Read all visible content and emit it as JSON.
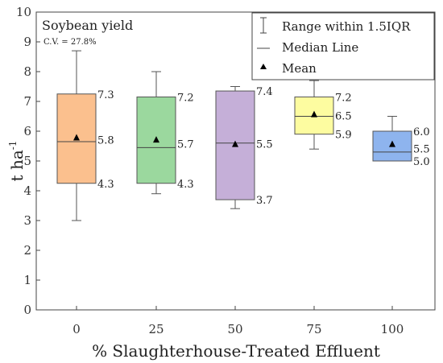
{
  "chart_data": {
    "type": "box",
    "title": "Soybean yield",
    "subtitle": "C.V. = 27.8%",
    "xlabel": "% Slaughterhouse-Treated Effluent",
    "ylabel_main": "t ha",
    "ylabel_sup": "-1",
    "ylim": [
      0,
      10
    ],
    "yticks": [
      "0",
      "1",
      "2",
      "3",
      "4",
      "5",
      "6",
      "7",
      "8",
      "9",
      "10"
    ],
    "categories": [
      "0",
      "25",
      "50",
      "75",
      "100"
    ],
    "boxes": [
      {
        "category": "0",
        "whisker_low": 3.0,
        "q1": 4.25,
        "median": 5.65,
        "q3": 7.25,
        "whisker_high": 8.7,
        "mean": 5.77,
        "color": "#FBC08E",
        "q1_label": "4.3",
        "median_label": "5.8",
        "q3_label": "7.3"
      },
      {
        "category": "25",
        "whisker_low": 3.9,
        "q1": 4.25,
        "median": 5.45,
        "q3": 7.15,
        "whisker_high": 8.0,
        "mean": 5.7,
        "color": "#9BD89E",
        "q1_label": "4.3",
        "median_label": "5.7",
        "q3_label": "7.2"
      },
      {
        "category": "50",
        "whisker_low": 3.4,
        "q1": 3.7,
        "median": 5.6,
        "q3": 7.35,
        "whisker_high": 7.5,
        "mean": 5.55,
        "color": "#C5AFD8",
        "q1_label": "3.7",
        "median_label": "5.5",
        "q3_label": "7.4"
      },
      {
        "category": "75",
        "whisker_low": 5.4,
        "q1": 5.9,
        "median": 6.5,
        "q3": 7.15,
        "whisker_high": 7.7,
        "mean": 6.55,
        "color": "#FDFCA0",
        "q1_label": "5.9",
        "median_label": "6.5",
        "q3_label": "7.2"
      },
      {
        "category": "100",
        "whisker_low": 5.0,
        "q1": 5.0,
        "median": 5.3,
        "q3": 6.0,
        "whisker_high": 6.5,
        "mean": 5.55,
        "color": "#8EB4EE",
        "q1_label": "5.0",
        "median_label": "5.5",
        "q3_label": "6.0"
      }
    ],
    "legend": {
      "placement": "top-right",
      "items": [
        {
          "symbol": "whisker",
          "label": "Range within 1.5IQR"
        },
        {
          "symbol": "line",
          "label": "Median Line"
        },
        {
          "symbol": "triangle",
          "label": "Mean"
        }
      ]
    }
  }
}
